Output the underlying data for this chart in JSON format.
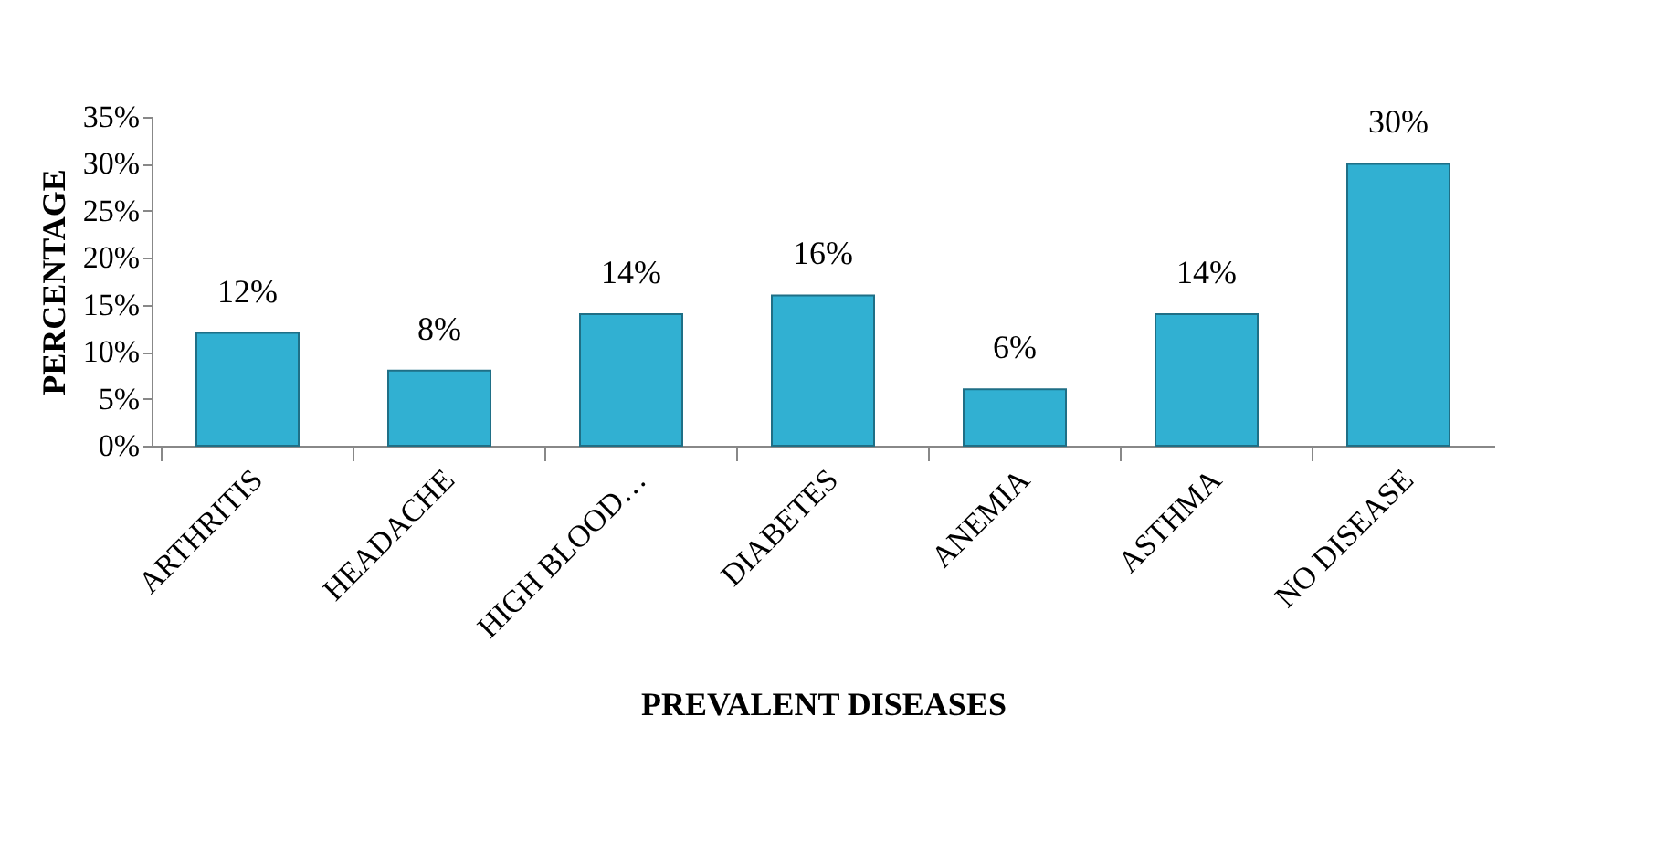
{
  "chart_data": {
    "type": "bar",
    "xlabel": "PREVALENT DISEASES",
    "ylabel": "PERCENTAGE",
    "categories": [
      "ARTHRITIS",
      "HEADACHE",
      "HIGH BLOOD…",
      "DIABETES",
      "ANEMIA",
      "ASTHMA",
      "NO DISEASE"
    ],
    "values": [
      12,
      8,
      14,
      16,
      6,
      14,
      30
    ],
    "value_labels": [
      "12%",
      "8%",
      "14%",
      "16%",
      "6%",
      "14%",
      "30%"
    ],
    "color": "#31b0d2",
    "ylim": [
      0,
      35
    ],
    "yticks": [
      {
        "value": 0,
        "label": "0%"
      },
      {
        "value": 5,
        "label": "5%"
      },
      {
        "value": 10,
        "label": "10%"
      },
      {
        "value": 15,
        "label": "15%"
      },
      {
        "value": 20,
        "label": "20%"
      },
      {
        "value": 25,
        "label": "25%"
      },
      {
        "value": 30,
        "label": "30%"
      },
      {
        "value": 35,
        "label": "35%"
      }
    ],
    "grid": false
  }
}
